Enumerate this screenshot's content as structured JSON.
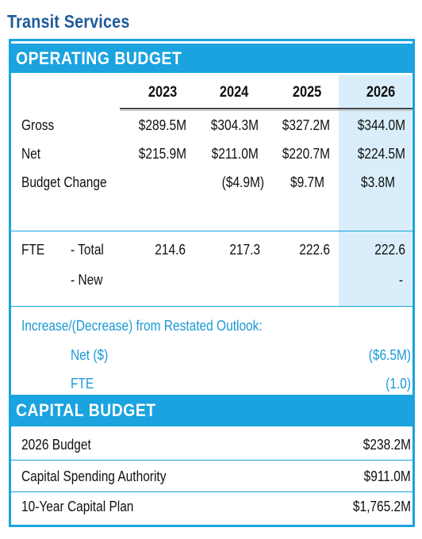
{
  "title": "Transit Services",
  "operating": {
    "header": "OPERATING BUDGET",
    "years": [
      "2023",
      "2024",
      "2025",
      "2026"
    ],
    "rows": [
      {
        "label": "Gross",
        "values": [
          "$289.5M",
          "$304.3M",
          "$327.2M",
          "$344.0M"
        ]
      },
      {
        "label": "Net",
        "values": [
          "$215.9M",
          "$211.0M",
          "$220.7M",
          "$224.5M"
        ]
      },
      {
        "label": "Budget Change",
        "values": [
          "",
          "($4.9M)",
          "$9.7M",
          "$3.8M"
        ]
      }
    ],
    "fte": {
      "label": "FTE",
      "total_label": "- Total",
      "total_values": [
        "214.6",
        "217.3",
        "222.6",
        "222.6"
      ],
      "new_label": "- New",
      "new_values": [
        "",
        "",
        "",
        "-"
      ]
    },
    "restated": {
      "heading": "Increase/(Decrease) from Restated Outlook:",
      "net_label": "Net ($)",
      "net_value": "($6.5M)",
      "fte_label": "FTE",
      "fte_value": "(1.0)"
    }
  },
  "capital": {
    "header": "CAPITAL BUDGET",
    "rows": [
      {
        "label": "2026 Budget",
        "value": "$238.2M"
      },
      {
        "label": "Capital Spending Authority",
        "value": "$911.0M"
      },
      {
        "label": "10-Year Capital Plan",
        "value": "$1,765.2M"
      }
    ]
  },
  "colors": {
    "accent": "#1aa3df",
    "highlight": "#d9eefa",
    "title": "#1f5a9c"
  }
}
